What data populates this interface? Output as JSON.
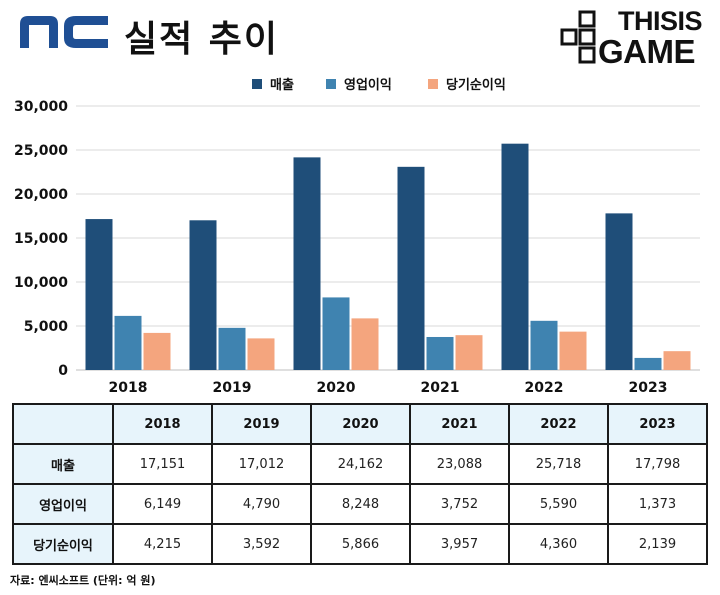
{
  "header": {
    "logo_text": "nc",
    "title": "실적 추이",
    "brand_line1": "THISIS",
    "brand_line2": "GAME"
  },
  "legend": [
    {
      "label": "매출",
      "color": "#1f4e79"
    },
    {
      "label": "영업이익",
      "color": "#3f83b0"
    },
    {
      "label": "당기순이익",
      "color": "#f4a57e"
    }
  ],
  "chart_data": {
    "type": "bar",
    "categories": [
      "2018",
      "2019",
      "2020",
      "2021",
      "2022",
      "2023"
    ],
    "series": [
      {
        "name": "매출",
        "values": [
          17151,
          17012,
          24162,
          23088,
          25718,
          17798
        ],
        "color": "#1f4e79"
      },
      {
        "name": "영업이익",
        "values": [
          6149,
          4790,
          8248,
          3752,
          5590,
          1373
        ],
        "color": "#3f83b0"
      },
      {
        "name": "당기순이익",
        "values": [
          4215,
          3592,
          5866,
          3957,
          4360,
          2139
        ],
        "color": "#f4a57e"
      }
    ],
    "ylim": [
      0,
      30000
    ],
    "yticks": [
      "0",
      "5,000",
      "10,000",
      "15,000",
      "20,000",
      "25,000",
      "30,000"
    ],
    "grid": true,
    "legend_position": "top-center"
  },
  "table": {
    "headers": [
      "",
      "2018",
      "2019",
      "2020",
      "2021",
      "2022",
      "2023"
    ],
    "rows": [
      {
        "label": "매출",
        "values": [
          "17,151",
          "17,012",
          "24,162",
          "23,088",
          "25,718",
          "17,798"
        ]
      },
      {
        "label": "영업이익",
        "values": [
          "6,149",
          "4,790",
          "8,248",
          "3,752",
          "5,590",
          "1,373"
        ]
      },
      {
        "label": "당기순이익",
        "values": [
          "4,215",
          "3,592",
          "5,866",
          "3,957",
          "4,360",
          "2,139"
        ]
      }
    ]
  },
  "source": "자료: 엔씨소프트 (단위: 억 원)"
}
